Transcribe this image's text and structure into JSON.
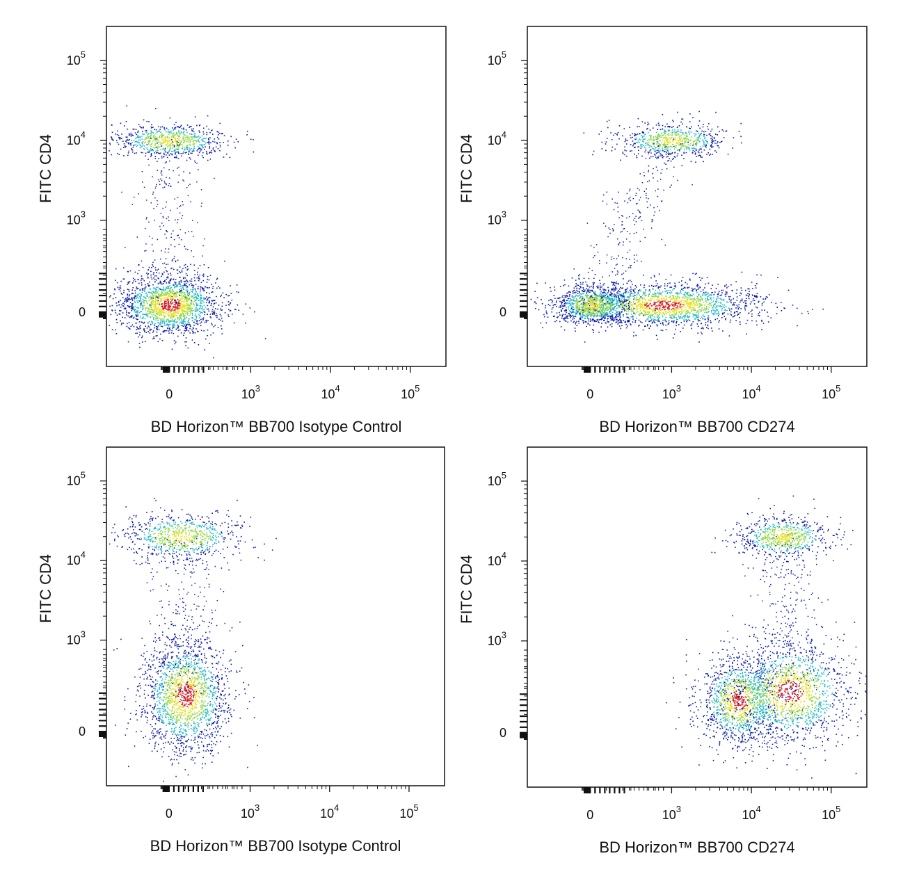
{
  "chart_data": [
    {
      "type": "scatter",
      "panel": "top-left",
      "xlabel": "BD Horizon™ BB700 Isotype Control",
      "ylabel": "FITC  CD4",
      "x_ticks": [
        "0",
        "10^3",
        "10^4",
        "10^5"
      ],
      "y_ticks": [
        "0",
        "10^3",
        "10^4",
        "10^5"
      ],
      "x_scale": "biexponential",
      "y_scale": "biexponential",
      "grid": false,
      "clusters": [
        {
          "x_center": 0,
          "y_center": 10000,
          "relative_size": 0.35
        },
        {
          "x_center": 0,
          "y_center": 80,
          "relative_size": 1.0
        }
      ]
    },
    {
      "type": "scatter",
      "panel": "top-right",
      "xlabel": "BD Horizon™ BB700 CD274",
      "ylabel": "FITC  CD4",
      "x_ticks": [
        "0",
        "10^3",
        "10^4",
        "10^5"
      ],
      "y_ticks": [
        "0",
        "10^3",
        "10^4",
        "10^5"
      ],
      "x_scale": "biexponential",
      "y_scale": "biexponential",
      "grid": false,
      "clusters": [
        {
          "x_center": 1000,
          "y_center": 10000,
          "relative_size": 0.3
        },
        {
          "x_center": 900,
          "y_center": 80,
          "relative_size": 1.0
        },
        {
          "x_center": 30,
          "y_center": 80,
          "relative_size": 0.45
        }
      ]
    },
    {
      "type": "scatter",
      "panel": "bottom-left",
      "xlabel": "BD Horizon™ BB700 Isotype Control",
      "ylabel": "FITC  CD4",
      "x_ticks": [
        "0",
        "10^3",
        "10^4",
        "10^5"
      ],
      "y_ticks": [
        "0",
        "10^3",
        "10^4",
        "10^5"
      ],
      "x_scale": "biexponential",
      "y_scale": "biexponential",
      "grid": false,
      "clusters": [
        {
          "x_center": 150,
          "y_center": 20000,
          "relative_size": 0.35
        },
        {
          "x_center": 200,
          "y_center": 400,
          "relative_size": 1.0
        }
      ]
    },
    {
      "type": "scatter",
      "panel": "bottom-right",
      "xlabel": "BD Horizon™ BB700 CD274",
      "ylabel": "FITC  CD4",
      "x_ticks": [
        "0",
        "10^3",
        "10^4",
        "10^5"
      ],
      "y_ticks": [
        "0",
        "10^3",
        "10^4",
        "10^5"
      ],
      "x_scale": "biexponential",
      "y_scale": "biexponential",
      "grid": false,
      "clusters": [
        {
          "x_center": 25000,
          "y_center": 20000,
          "relative_size": 0.3
        },
        {
          "x_center": 7000,
          "y_center": 350,
          "relative_size": 0.6
        },
        {
          "x_center": 30000,
          "y_center": 450,
          "relative_size": 0.8
        }
      ]
    }
  ],
  "colors": {
    "density_low": "#0a1aa8",
    "density_mid": "#22b8c8",
    "density_midhigh": "#8fd840",
    "density_high": "#e8e020",
    "density_peak": "#d81818",
    "axis": "#111111"
  }
}
